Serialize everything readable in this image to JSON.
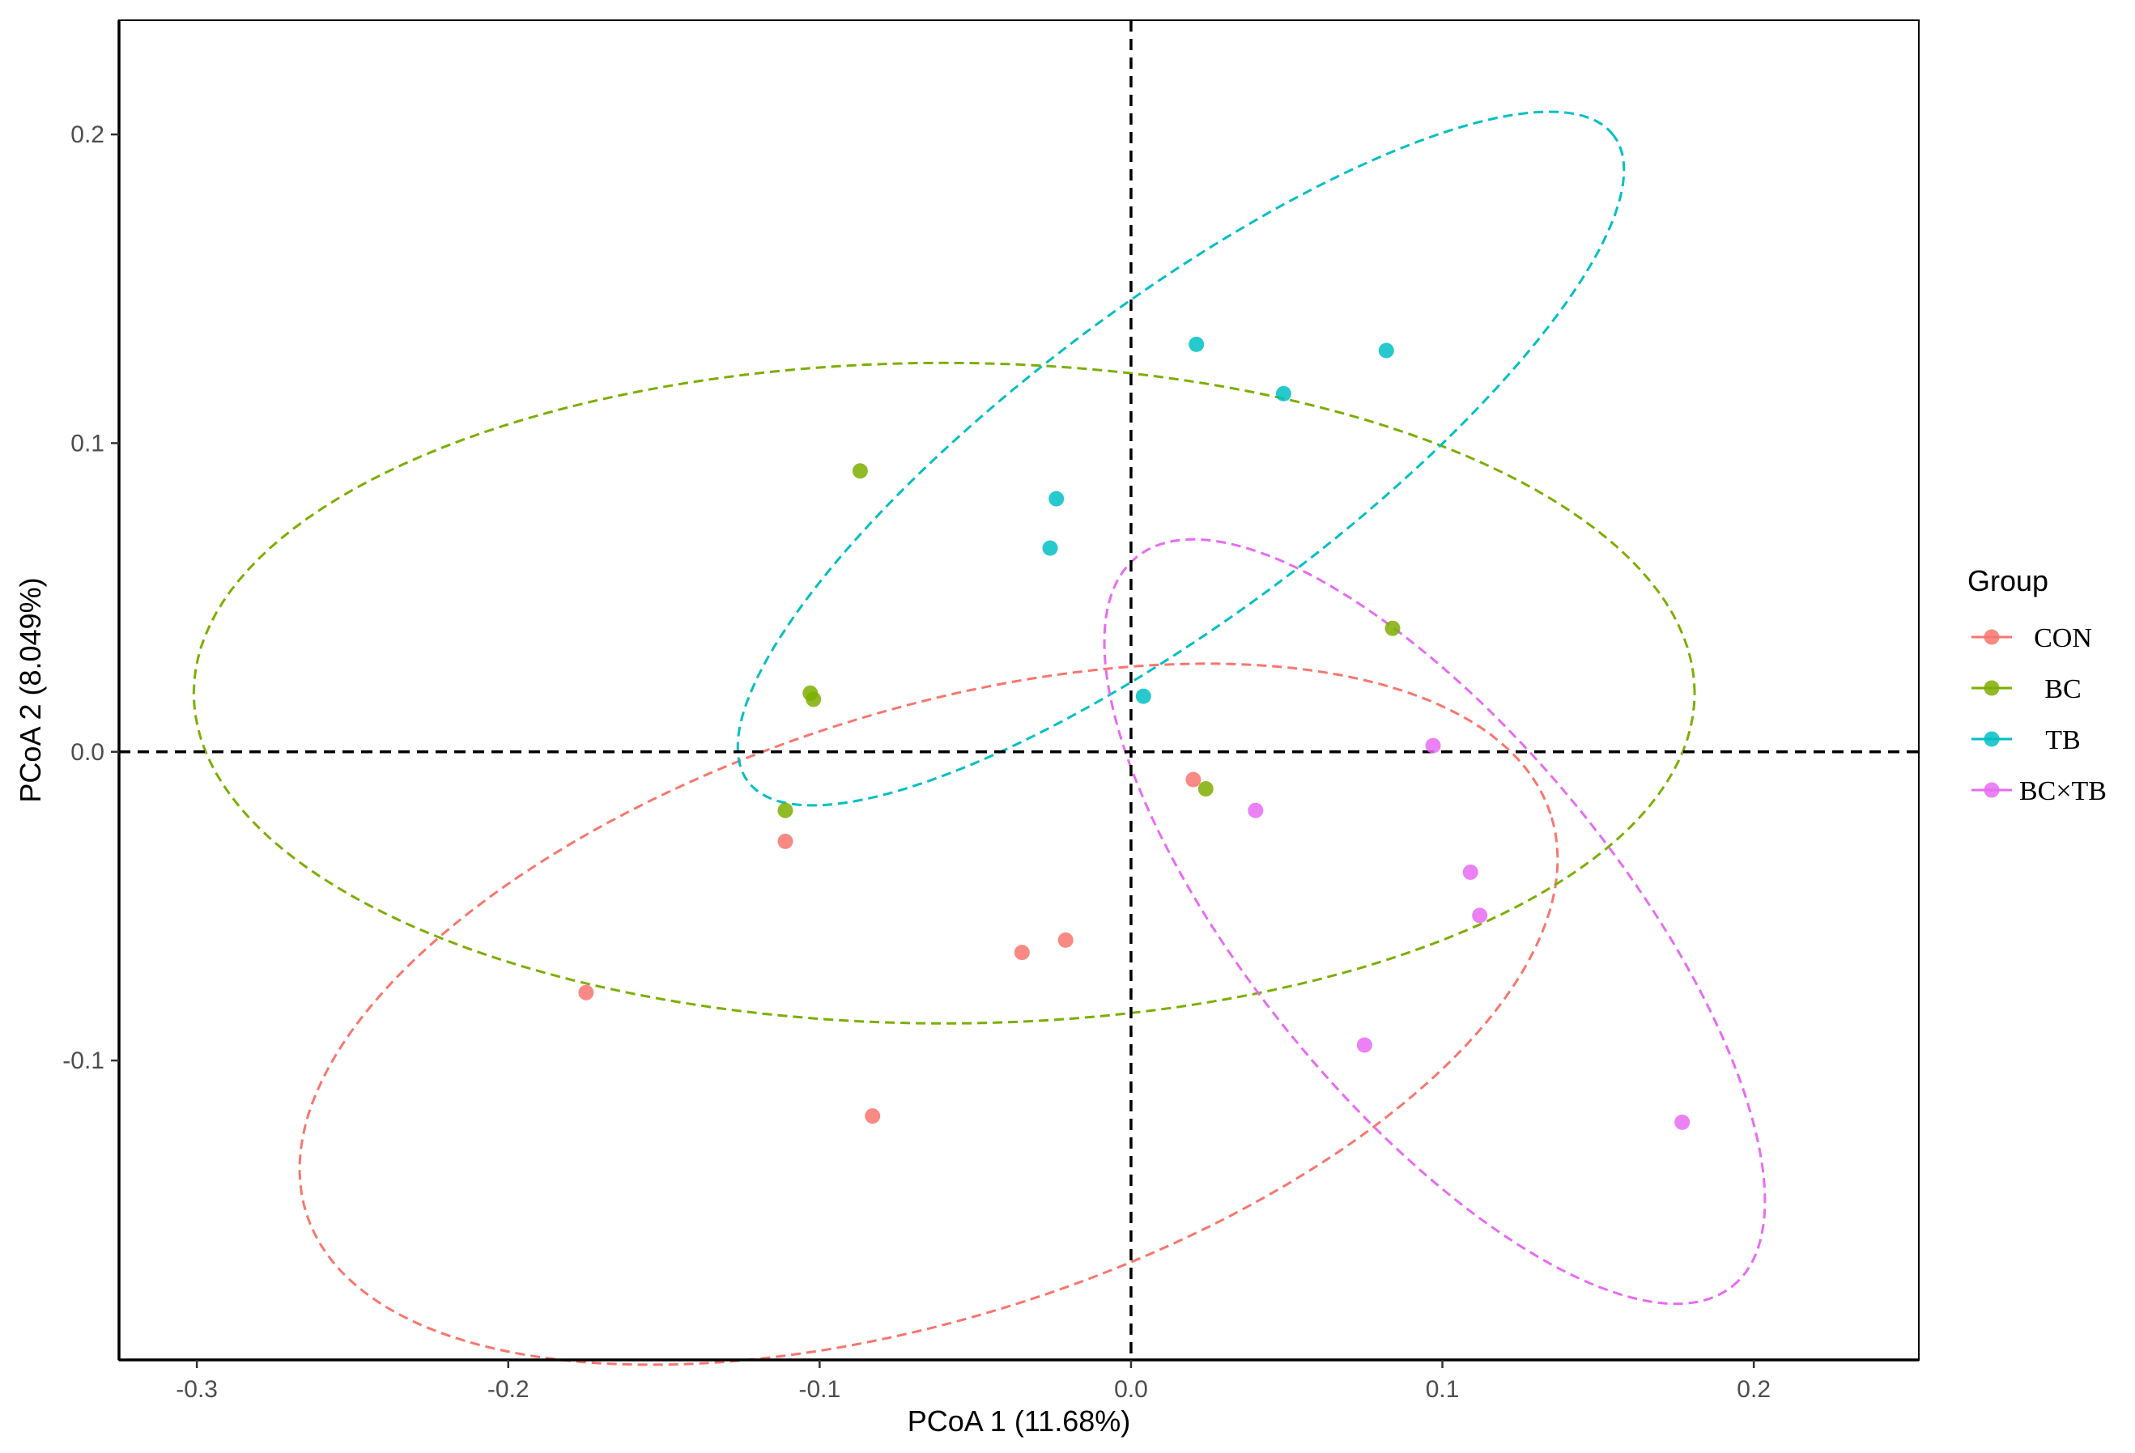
{
  "chart_data": {
    "type": "scatter",
    "title": "",
    "xlabel": "PCoA 1 (11.68%)",
    "ylabel": "PCoA 2 (8.049%)",
    "xlim": [
      -0.325,
      0.253
    ],
    "ylim": [
      -0.197,
      0.237
    ],
    "x_ticks": [
      -0.3,
      -0.2,
      -0.1,
      0.0,
      0.1,
      0.2
    ],
    "x_tick_labels": [
      "-0.3",
      "-0.2",
      "-0.1",
      "0.0",
      "0.1",
      "0.2"
    ],
    "y_ticks": [
      -0.1,
      0.0,
      0.1,
      0.2
    ],
    "y_tick_labels": [
      "-0.1",
      "0.0",
      "0.1",
      "0.2"
    ],
    "grid": false,
    "reference_lines": {
      "x": 0.0,
      "y": 0.0,
      "style": "dashed"
    },
    "legend": {
      "title": "Group",
      "placement": "right"
    },
    "series": [
      {
        "name": "CON",
        "color": "#F8766D",
        "points": [
          {
            "x": -0.111,
            "y": -0.029
          },
          {
            "x": -0.175,
            "y": -0.078
          },
          {
            "x": -0.035,
            "y": -0.065
          },
          {
            "x": -0.021,
            "y": -0.061
          },
          {
            "x": -0.083,
            "y": -0.118
          },
          {
            "x": 0.02,
            "y": -0.009
          }
        ],
        "ellipse": {
          "cx": -0.065,
          "cy": -0.085,
          "rx": 0.21,
          "ry": 0.098,
          "angle_deg": 18.0
        }
      },
      {
        "name": "BC",
        "color": "#7CAE00",
        "points": [
          {
            "x": -0.087,
            "y": 0.091
          },
          {
            "x": -0.103,
            "y": 0.019
          },
          {
            "x": -0.102,
            "y": 0.017
          },
          {
            "x": -0.111,
            "y": -0.019
          },
          {
            "x": 0.024,
            "y": -0.012
          },
          {
            "x": 0.084,
            "y": 0.04
          }
        ],
        "ellipse": {
          "cx": -0.06,
          "cy": 0.019,
          "rx": 0.241,
          "ry": 0.107,
          "angle_deg": 0.0
        }
      },
      {
        "name": "TB",
        "color": "#00BFC4",
        "points": [
          {
            "x": 0.021,
            "y": 0.132
          },
          {
            "x": 0.082,
            "y": 0.13
          },
          {
            "x": 0.049,
            "y": 0.116
          },
          {
            "x": -0.024,
            "y": 0.082
          },
          {
            "x": -0.026,
            "y": 0.066
          },
          {
            "x": 0.004,
            "y": 0.018
          }
        ],
        "ellipse": {
          "cx": 0.016,
          "cy": 0.095,
          "rx": 0.174,
          "ry": 0.051,
          "angle_deg": 37.0
        }
      },
      {
        "name": "BC×TB",
        "color": "#E76BF3",
        "points": [
          {
            "x": 0.097,
            "y": 0.002
          },
          {
            "x": 0.04,
            "y": -0.019
          },
          {
            "x": 0.109,
            "y": -0.039
          },
          {
            "x": 0.112,
            "y": -0.053
          },
          {
            "x": 0.075,
            "y": -0.095
          },
          {
            "x": 0.177,
            "y": -0.12
          }
        ],
        "ellipse": {
          "cx": 0.0975,
          "cy": -0.055,
          "rx": 0.152,
          "ry": 0.059,
          "angle_deg": -51.0
        }
      }
    ]
  }
}
